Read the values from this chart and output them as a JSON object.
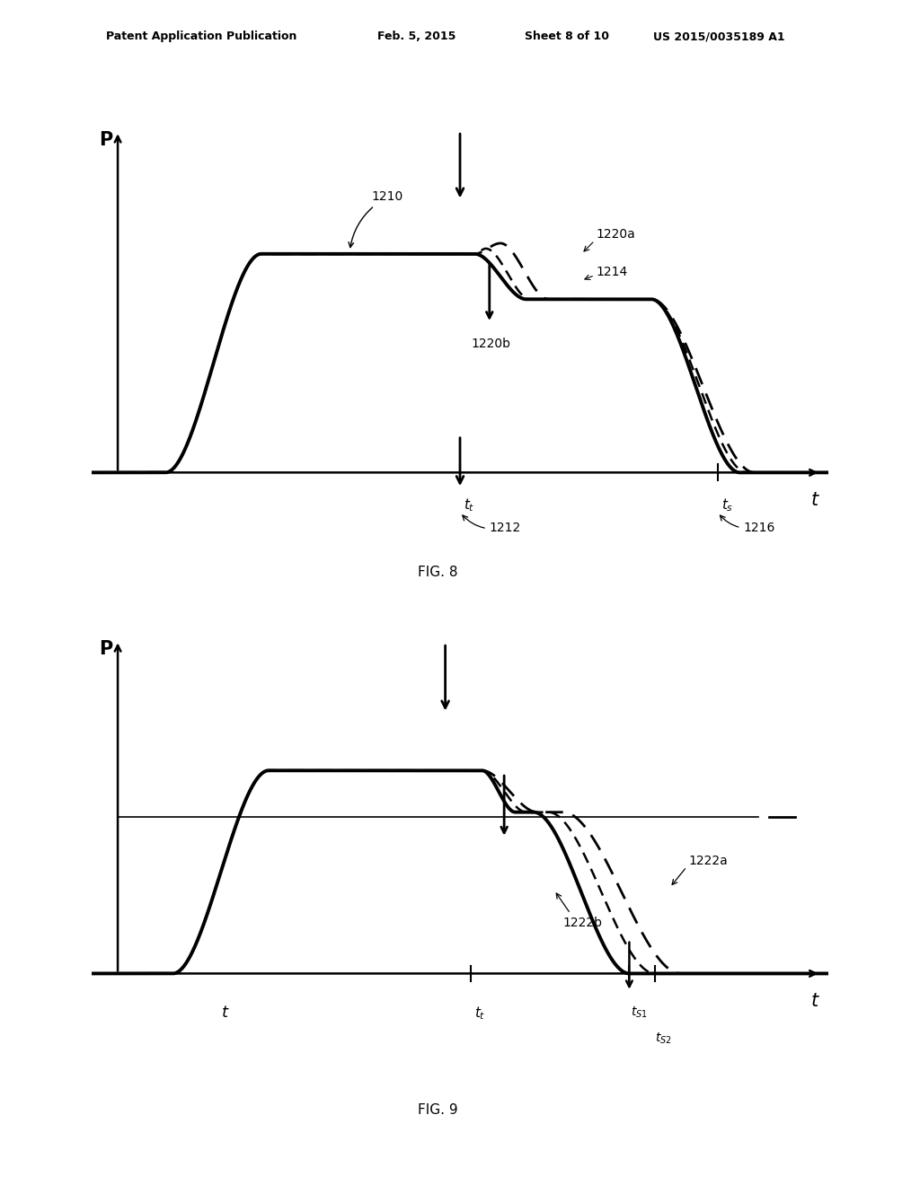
{
  "bg_color": "#ffffff",
  "header_line1": "Patent Application Publication",
  "header_line2": "Feb. 5, 2015",
  "header_line3": "Sheet 8 of 10",
  "header_line4": "US 2015/0035189 A1",
  "fig8_label": "FIG. 8",
  "fig9_label": "FIG. 9",
  "fig8": {
    "curve_label": "1210",
    "dashed1_label": "1220a",
    "dashed2_label": "1214",
    "arrow_label": "1220b",
    "tt_label": "t_t",
    "ts_label": "t_s",
    "ref1212": "1212",
    "ref1216": "1216"
  },
  "fig9": {
    "ref1222a": "1222a",
    "ref1222b": "1222b",
    "ts1_label": "t_{S1}",
    "ts2_label": "t_{S2}",
    "tt_label": "t_t",
    "t_label": "t"
  }
}
